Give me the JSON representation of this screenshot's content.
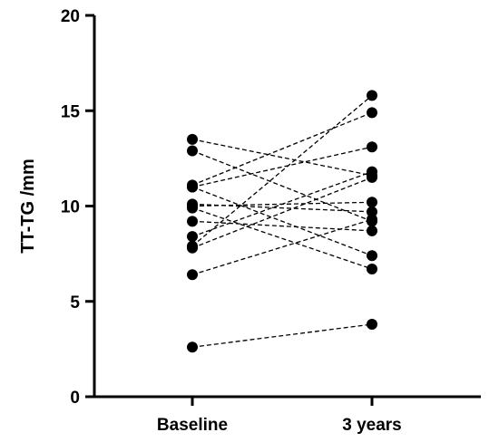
{
  "chart_data": {
    "type": "line",
    "ylabel": "TT-TG /mm",
    "xlabel": "",
    "categories": [
      "Baseline",
      "3 years"
    ],
    "ylim": [
      0,
      20
    ],
    "yticks": [
      0,
      5,
      10,
      15,
      20
    ],
    "grid": false,
    "line_style": "dashed",
    "marker": "filled-circle",
    "color": "#000000",
    "pairs": [
      {
        "values": [
          13.5,
          11.6
        ]
      },
      {
        "values": [
          12.9,
          9.2
        ]
      },
      {
        "values": [
          11.1,
          14.9
        ]
      },
      {
        "values": [
          11.0,
          13.1
        ]
      },
      {
        "values": [
          11.0,
          7.4
        ]
      },
      {
        "values": [
          10.1,
          9.7
        ]
      },
      {
        "values": [
          10.0,
          10.2
        ]
      },
      {
        "values": [
          9.9,
          6.7
        ]
      },
      {
        "values": [
          9.2,
          8.7
        ]
      },
      {
        "values": [
          8.4,
          11.8
        ]
      },
      {
        "values": [
          7.9,
          15.8
        ]
      },
      {
        "values": [
          7.8,
          11.5
        ]
      },
      {
        "values": [
          6.4,
          9.3
        ]
      },
      {
        "values": [
          2.6,
          3.8
        ]
      }
    ]
  }
}
